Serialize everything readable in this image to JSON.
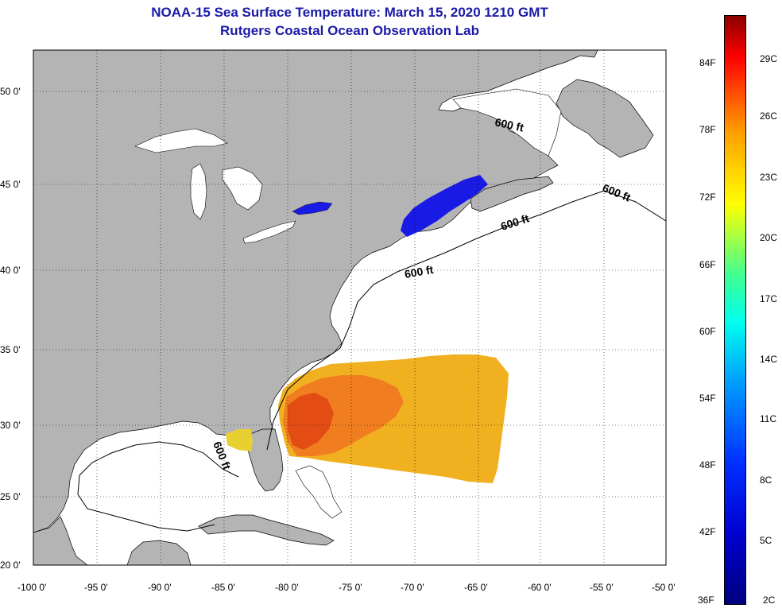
{
  "title": {
    "line1": "NOAA-15 Sea Surface Temperature:  March 15, 2020 1210 GMT",
    "line2": "Rutgers Coastal Ocean Observation Lab"
  },
  "axes": {
    "lat_labels": [
      "50 0'",
      "45 0'",
      "40 0'",
      "35 0'",
      "30 0'",
      "25 0'",
      "20 0'"
    ],
    "lon_labels": [
      "-100 0'",
      "-95 0'",
      "-90 0'",
      "-85 0'",
      "-80 0'",
      "-75 0'",
      "-70 0'",
      "-65 0'",
      "-60 0'",
      "-55 0'",
      "-50 0'"
    ]
  },
  "contour_labels": [
    "600 ft",
    "600 ft",
    "600 ft",
    "600 ft",
    "600 ft"
  ],
  "colorbar": {
    "fahrenheit": [
      "84F",
      "78F",
      "72F",
      "66F",
      "60F",
      "54F",
      "48F",
      "42F",
      "36F"
    ],
    "celsius": [
      "29C",
      "26C",
      "23C",
      "20C",
      "17C",
      "14C",
      "11C",
      "8C",
      "5C",
      "2C"
    ]
  },
  "colors": {
    "land": "#b4b4b4",
    "water": "#ffffff",
    "title": "#1a1aa6",
    "cold": "#1a1ae6",
    "warm": "#f07820",
    "mid": "#f0b020"
  }
}
